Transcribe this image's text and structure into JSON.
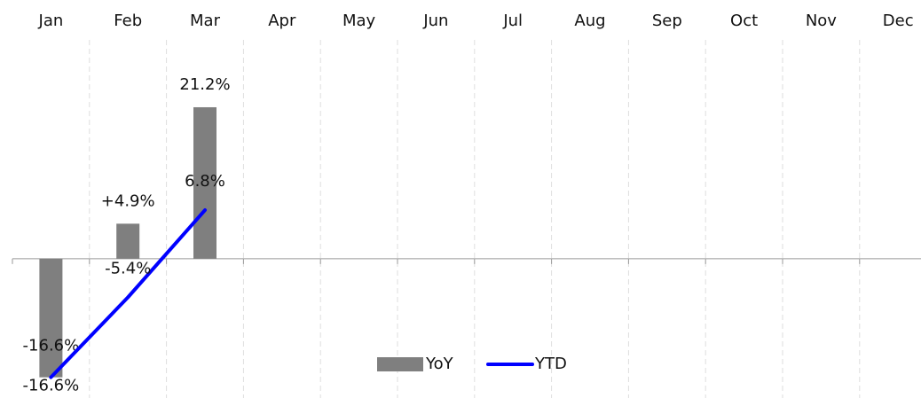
{
  "chart_data": {
    "type": "bar-line",
    "categories": [
      "Jan",
      "Feb",
      "Mar",
      "Apr",
      "May",
      "Jun",
      "Jul",
      "Aug",
      "Sep",
      "Oct",
      "Nov",
      "Dec"
    ],
    "series": [
      {
        "name": "YoY",
        "type": "bar",
        "color": "#7f7f7f",
        "values": [
          -16.6,
          4.9,
          21.2,
          null,
          null,
          null,
          null,
          null,
          null,
          null,
          null,
          null
        ],
        "value_labels": [
          "-16.6%",
          "+4.9%",
          "21.2%",
          null,
          null,
          null,
          null,
          null,
          null,
          null,
          null,
          null
        ]
      },
      {
        "name": "YTD",
        "type": "line",
        "color": "#0000ff",
        "values": [
          -16.6,
          -5.4,
          6.8,
          null,
          null,
          null,
          null,
          null,
          null,
          null,
          null,
          null
        ],
        "value_labels": [
          "-16.6%",
          "-5.4%",
          "6.8%",
          null,
          null,
          null,
          null,
          null,
          null,
          null,
          null,
          null
        ]
      }
    ],
    "ylim": [
      -19,
      31
    ],
    "grid": true,
    "legend": "bottom"
  }
}
